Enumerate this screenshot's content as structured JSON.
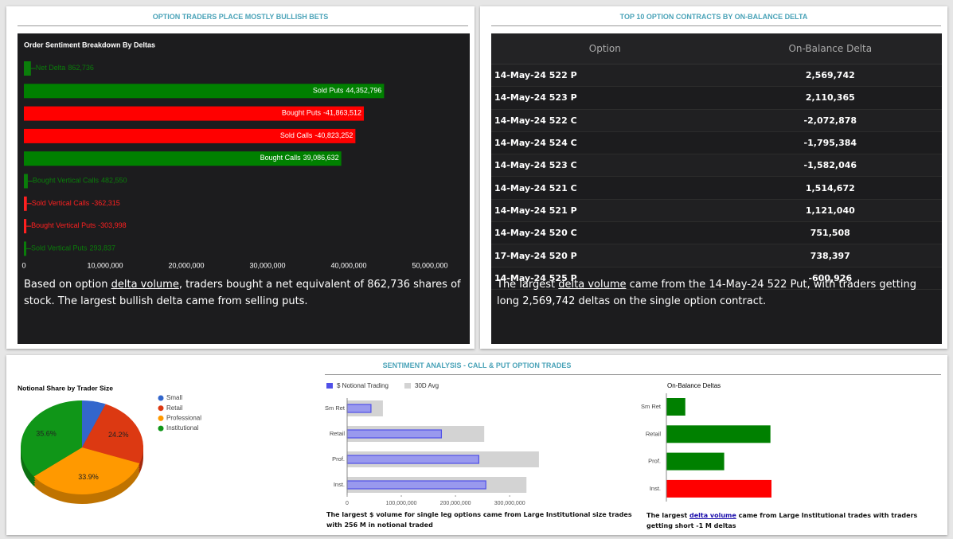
{
  "panels": [
    "OPTION TRADERS PLACE MOSTLY BULLISH BETS",
    "TOP 10 OPTION CONTRACTS BY ON-BALANCE DELTA",
    "SENTIMENT ANALYSIS - CALL & PUT OPTION TRADES"
  ],
  "chart_data": [
    {
      "type": "hbar",
      "title": "Order Sentiment Breakdown By Deltas",
      "categories": [
        "Net Delta",
        "Sold Puts",
        "Bought Puts",
        "Sold Calls",
        "Bought Calls",
        "Bought Vertical Calls",
        "Sold Vertical Calls",
        "Bought Vertical Puts",
        "Sold Vertical Puts"
      ],
      "values": [
        862736,
        44352796,
        -41863512,
        -40823252,
        39086632,
        482550,
        -362315,
        -303998,
        293837
      ],
      "value_labels": [
        "862,736",
        "44,352,796",
        "-41,863,512",
        "-40,823,252",
        "39,086,632",
        "482,550",
        "-362,315",
        "-303,998",
        "293,837"
      ],
      "colors": [
        "#0a7d0a",
        "#008000",
        "#ff0000",
        "#ff0000",
        "#008000",
        "#0a7d0a",
        "#ff2020",
        "#ff2020",
        "#0a7d0a"
      ],
      "xlim": [
        0,
        50000000
      ],
      "xticks": [
        0,
        {
          "value": 10000000,
          "label": "10,000,000"
        },
        {
          "value": 20000000,
          "label": "20,000,000"
        },
        {
          "value": 30000000,
          "label": "30,000,000"
        },
        {
          "value": 40000000,
          "label": "40,000,000"
        },
        {
          "value": 50000000,
          "label": "50,000,000"
        }
      ]
    },
    {
      "type": "pie",
      "title": "Notional Share by Trader Size",
      "categories": [
        "Small",
        "Retail",
        "Professional",
        "Institutional"
      ],
      "values": [
        6.3,
        24.2,
        33.9,
        35.6
      ],
      "value_labels": [
        null,
        "24.2%",
        "33.9%",
        "35.6%"
      ],
      "colors": [
        "#3366cc",
        "#dc3912",
        "#ff9900",
        "#109618"
      ]
    },
    {
      "type": "groupbar",
      "legend": "top",
      "categories": [
        "Sm Ret",
        "Retail",
        "Prof.",
        "Inst."
      ],
      "series": [
        {
          "name": "$ Notional Trading",
          "color": "#5050e8",
          "values": [
            44000000,
            174000000,
            243000000,
            256000000
          ]
        },
        {
          "name": "30D Avg",
          "color": "#d3d3d3",
          "values": [
            66000000,
            253000000,
            354000000,
            331000000
          ]
        }
      ],
      "xlim": [
        0,
        360000000
      ],
      "xticks": [
        0,
        {
          "value": 100000000,
          "label": "100,000,000"
        },
        {
          "value": 200000000,
          "label": "200,000,000"
        },
        {
          "value": 300000000,
          "label": "300,000,000"
        }
      ]
    },
    {
      "type": "hbar2",
      "title": "On-Balance Deltas",
      "categories": [
        "Sm Ret",
        "Retail",
        "Prof.",
        "Inst."
      ],
      "values": [
        180000,
        990000,
        550000,
        -1000000
      ],
      "colors": [
        "#008000",
        "#008000",
        "#008000",
        "#ff0000"
      ]
    }
  ],
  "table": {
    "header": [
      "Option",
      "On-Balance Delta"
    ],
    "rows": [
      [
        "14-May-24 522 P",
        "2,569,742"
      ],
      [
        "14-May-24 523 P",
        "2,110,365"
      ],
      [
        "14-May-24 522 C",
        "-2,072,878"
      ],
      [
        "14-May-24 524 C",
        "-1,795,384"
      ],
      [
        "14-May-24 523 C",
        "-1,582,046"
      ],
      [
        "14-May-24 521 C",
        "1,514,672"
      ],
      [
        "14-May-24 521 P",
        "1,121,040"
      ],
      [
        "14-May-24 520 C",
        "751,508"
      ],
      [
        "17-May-24 520 P",
        "738,397"
      ],
      [
        "14-May-24 525 P",
        "-600,926"
      ]
    ]
  },
  "notes": {
    "delta": [
      "Based on option ",
      "delta volume",
      ", traders bought a net equivalent of 862,736 shares of stock. The largest bullish delta came from selling puts."
    ],
    "table": [
      "The largest ",
      "delta volume",
      " came from the 14-May-24 522 Put, with traders getting long 2,569,742 deltas on the single option contract."
    ],
    "notional": "The largest $ volume for single leg options came from Large Institutional size trades with 256 M in notional traded",
    "on_balance": [
      "The largest ",
      "delta volume",
      " came from Large Institutional trades with traders getting short -1 M deltas"
    ]
  }
}
